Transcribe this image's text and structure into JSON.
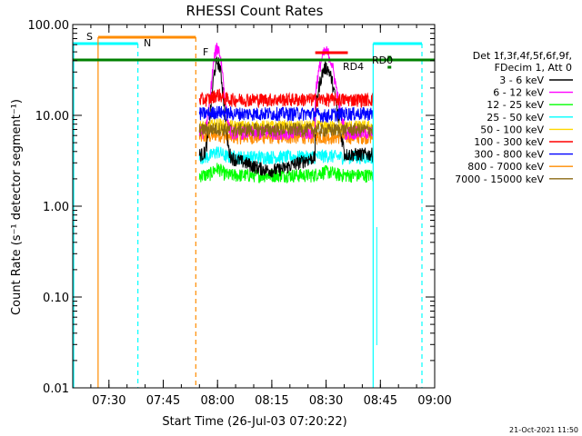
{
  "chart_data": {
    "type": "line",
    "title": "RHESSI Count Rates",
    "xlabel": "Start Time (26-Jul-03 07:20:22)",
    "ylabel": "Count Rate (s⁻¹ detector segment⁻¹)",
    "yscale": "log",
    "ylim": [
      0.01,
      100.0
    ],
    "xlim": [
      "07:20",
      "09:00"
    ],
    "x_ticks": [
      "07:30",
      "07:45",
      "08:00",
      "08:15",
      "08:30",
      "08:45",
      "09:00"
    ],
    "y_ticks": [
      "0.01",
      "0.10",
      "1.00",
      "10.00",
      "100.00"
    ],
    "legend_header": [
      "Det 1f,3f,4f,5f,6f,9f,",
      "FDecim 1, Att 0"
    ],
    "legend_position": "right",
    "series": [
      {
        "name": "3 - 6 keV",
        "color": "#000000",
        "base": 5.0,
        "peak1": 40,
        "peak2": 35
      },
      {
        "name": "6 - 12 keV",
        "color": "#ff00ff",
        "base": 6.5,
        "peak1": 55,
        "peak2": 50
      },
      {
        "name": "12 - 25 keV",
        "color": "#00ff00",
        "base": 2.2,
        "peak1": 2.6,
        "peak2": 2.4
      },
      {
        "name": "25 - 50 keV",
        "color": "#00ffff",
        "base": 3.5,
        "peak1": 4.0,
        "peak2": 3.6
      },
      {
        "name": "50 - 100 keV",
        "color": "#ffd700",
        "base": 7.5,
        "peak1": 8.0,
        "peak2": 7.5
      },
      {
        "name": "100 - 300 keV",
        "color": "#ff0000",
        "base": 15.0,
        "peak1": 17,
        "peak2": 15
      },
      {
        "name": "300 - 800 keV",
        "color": "#0000ff",
        "base": 10.5,
        "peak1": 11,
        "peak2": 10
      },
      {
        "name": "800 - 7000 keV",
        "color": "#ff8c00",
        "base": 5.8,
        "peak1": 6.2,
        "peak2": 5.8
      },
      {
        "name": "7000 - 15000 keV",
        "color": "#8b6914",
        "base": 7.0,
        "peak1": 7.2,
        "peak2": 6.9
      }
    ],
    "data_interval": [
      "07:55",
      "08:43"
    ],
    "peaks": [
      "08:00",
      "08:29"
    ],
    "annotations": [
      {
        "label": "S",
        "color": "#ff8c00"
      },
      {
        "label": "N",
        "color": "#00ffff"
      },
      {
        "label": "F",
        "color": "#ff8c00"
      },
      {
        "label": "RD0",
        "color": "#008000"
      },
      {
        "label": "RD4",
        "color": "#008000"
      }
    ]
  },
  "timestamp": "21-Oct-2021 11:50"
}
